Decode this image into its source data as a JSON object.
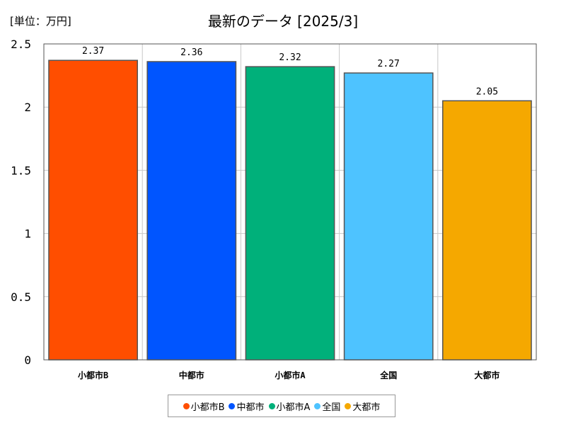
{
  "unit_label": "[単位：万円]",
  "title": "最新のデータ [2025/3]",
  "chart_data": {
    "type": "bar",
    "categories": [
      "小都市B",
      "中都市",
      "小都市A",
      "全国",
      "大都市"
    ],
    "values": [
      2.37,
      2.36,
      2.32,
      2.27,
      2.05
    ],
    "value_labels": [
      "2.37",
      "2.36",
      "2.32",
      "2.27",
      "2.05"
    ],
    "colors": [
      "#ff4e00",
      "#0055ff",
      "#00b07a",
      "#4ec3ff",
      "#f5a800"
    ],
    "ylim": [
      0,
      2.5
    ],
    "yticks": [
      0,
      0.5,
      1,
      1.5,
      2,
      2.5
    ],
    "ytick_labels": [
      "0",
      "0.5",
      "1",
      "1.5",
      "2",
      "2.5"
    ],
    "grid": true,
    "legend_position": "bottom-center"
  }
}
